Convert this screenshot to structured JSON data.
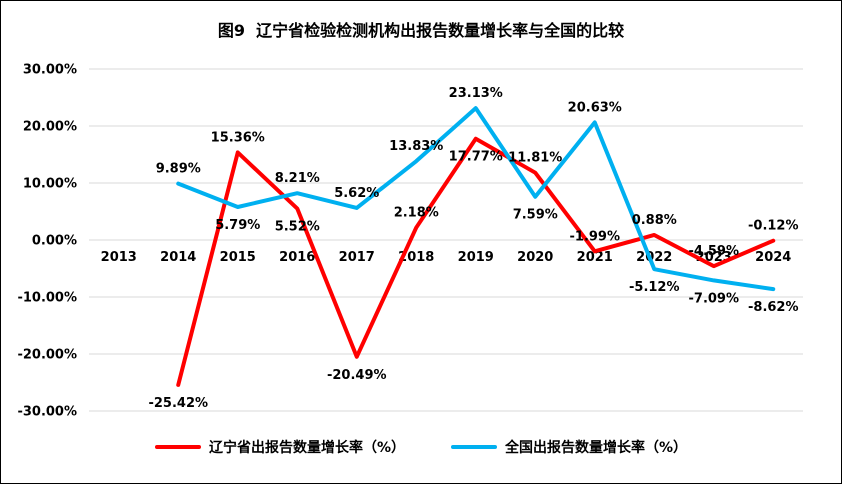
{
  "chart_data": {
    "type": "line",
    "title": "图9  辽宁省检验检测机构出报告数量增长率与全国的比较",
    "categories": [
      "2013",
      "2014",
      "2015",
      "2016",
      "2017",
      "2018",
      "2019",
      "2020",
      "2021",
      "2022",
      "2023",
      "2024"
    ],
    "series": [
      {
        "name": "辽宁省出报告数量增长率（%）",
        "color": "#FF0000",
        "values": [
          null,
          -25.42,
          15.36,
          5.52,
          -20.49,
          2.18,
          17.77,
          11.81,
          -1.99,
          0.88,
          -4.59,
          -0.12
        ],
        "data_labels": [
          "",
          "-25.42%",
          "15.36%",
          "5.52%",
          "-20.49%",
          "2.18%",
          "17.77%",
          "11.81%",
          "-1.99%",
          "0.88%",
          "-4.59%",
          "-0.12%"
        ],
        "label_side": [
          null,
          "below",
          "above",
          "below",
          "below",
          "above",
          "below",
          "above",
          "above",
          "above",
          "above",
          "above"
        ]
      },
      {
        "name": "全国出报告数量增长率（%）",
        "color": "#00B0F0",
        "values": [
          null,
          9.89,
          5.79,
          8.21,
          5.62,
          13.83,
          23.13,
          7.59,
          20.63,
          -5.12,
          -7.09,
          -8.62
        ],
        "data_labels": [
          "",
          "9.89%",
          "5.79%",
          "8.21%",
          "5.62%",
          "13.83%",
          "23.13%",
          "7.59%",
          "20.63%",
          "-5.12%",
          "-7.09%",
          "-8.62%"
        ],
        "label_side": [
          null,
          "above",
          "below",
          "above",
          "above",
          "above",
          "above",
          "below",
          "above",
          "below",
          "below",
          "below"
        ]
      }
    ],
    "ylim": [
      -30,
      30
    ],
    "yticks": [
      {
        "value": 30,
        "label": "30.00%"
      },
      {
        "value": 20,
        "label": "20.00%"
      },
      {
        "value": 10,
        "label": "10.00%"
      },
      {
        "value": 0,
        "label": "0.00%"
      },
      {
        "value": -10,
        "label": "-10.00%"
      },
      {
        "value": -20,
        "label": "-20.00%"
      },
      {
        "value": -30,
        "label": "-30.00%"
      }
    ],
    "grid": true,
    "legend_position": "bottom",
    "colors": {
      "grid": "#D9D9D9",
      "text": "#000000",
      "background": "#FFFFFF",
      "border": "#000000"
    }
  }
}
